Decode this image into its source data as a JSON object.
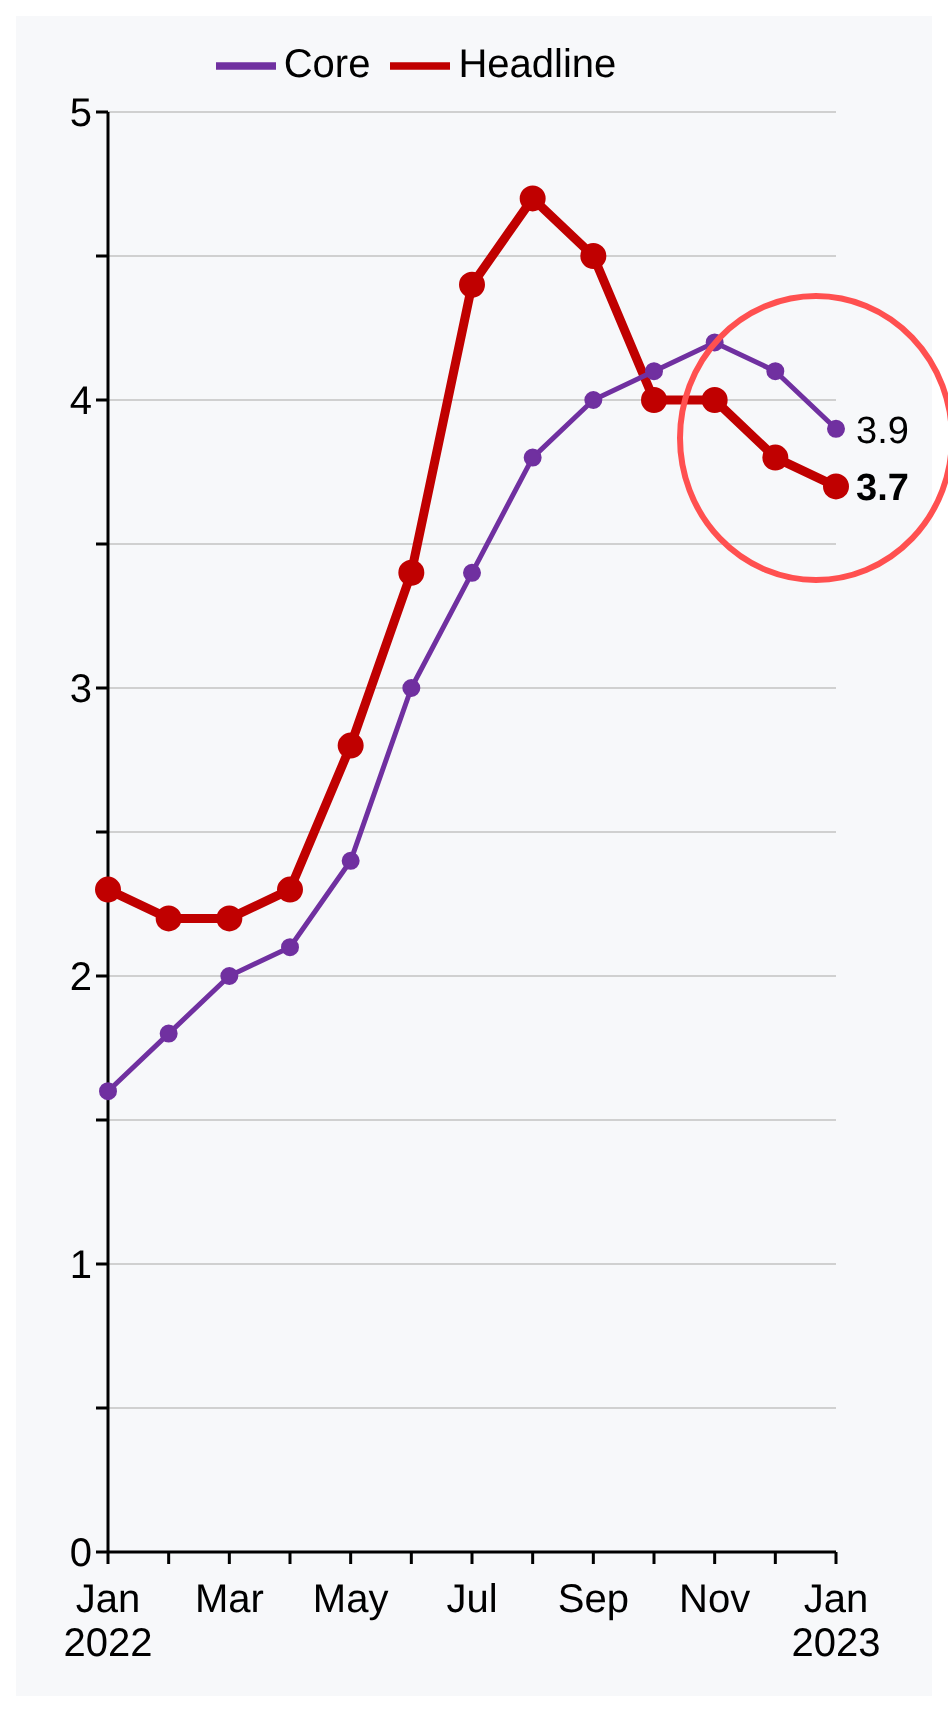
{
  "chart_data": {
    "type": "line",
    "categories": [
      "Jan\n2022",
      null,
      "Mar",
      null,
      "May",
      null,
      "Jul",
      null,
      "Sep",
      null,
      "Nov",
      null,
      "Jan\n2023"
    ],
    "series": [
      {
        "name": "Headline",
        "color": "#c00000",
        "values": [
          2.3,
          2.2,
          2.2,
          2.3,
          2.8,
          3.4,
          4.4,
          4.7,
          4.5,
          4.0,
          4.0,
          3.8,
          3.7
        ],
        "value_labels": [
          null,
          null,
          null,
          null,
          null,
          null,
          null,
          null,
          null,
          null,
          null,
          null,
          "3.7"
        ]
      },
      {
        "name": "Core",
        "color": "#7030a0",
        "values": [
          1.6,
          1.8,
          2.0,
          2.1,
          2.4,
          3.0,
          3.4,
          3.8,
          4.0,
          4.1,
          4.2,
          4.1,
          3.9
        ],
        "value_labels": [
          null,
          null,
          null,
          null,
          null,
          null,
          null,
          null,
          null,
          null,
          null,
          null,
          "3.9"
        ]
      }
    ],
    "ylim": [
      0,
      5
    ],
    "yticks": [
      0,
      {
        "value": 0.5,
        "label": null
      },
      1,
      {
        "value": 1.5,
        "label": null
      },
      2,
      {
        "value": 2.5,
        "label": null
      },
      3,
      {
        "value": 3.5,
        "label": null
      },
      4,
      {
        "value": 4.5,
        "label": null
      },
      5
    ],
    "grid": "y",
    "legend": "top",
    "marker": "circle",
    "line_style": "solid"
  }
}
